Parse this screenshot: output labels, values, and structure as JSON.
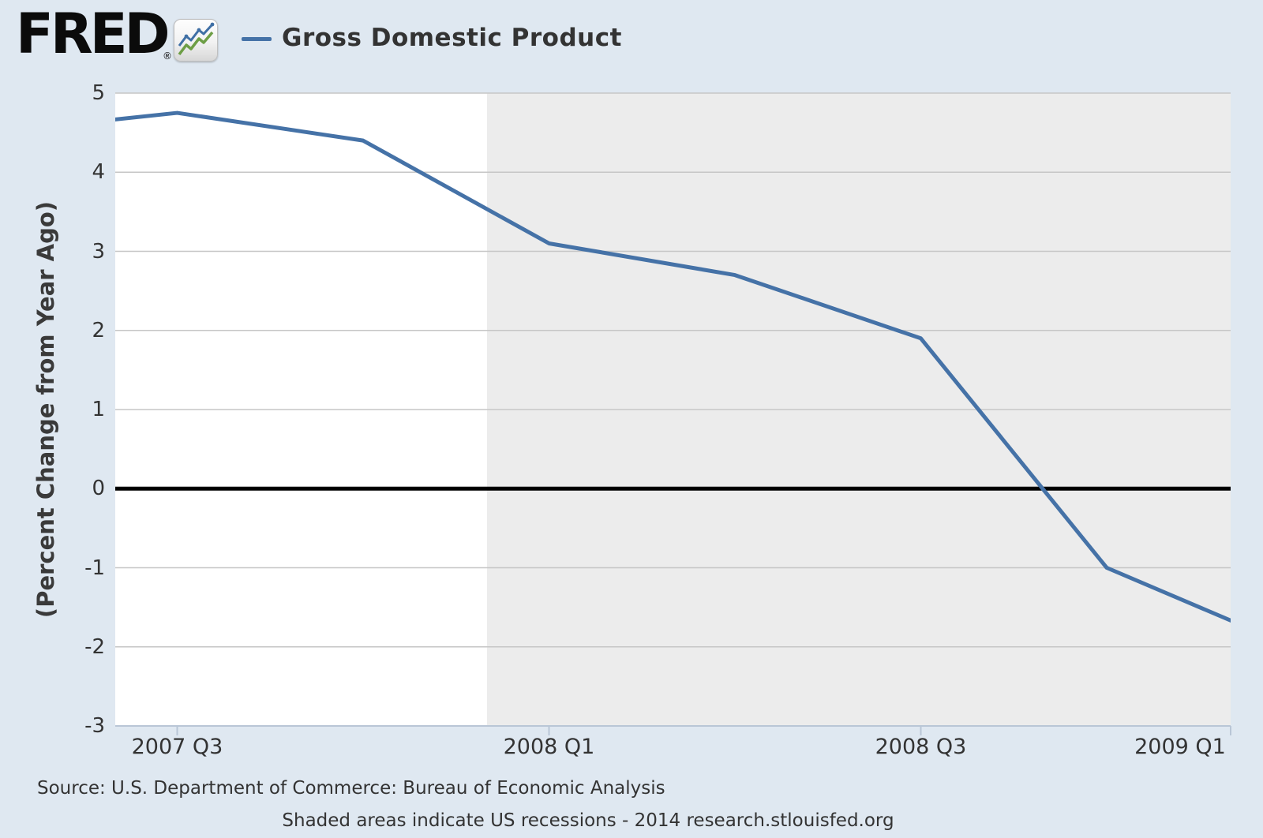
{
  "header": {
    "logo": "FRED",
    "registered": "®"
  },
  "legend": {
    "label": "Gross Domestic Product"
  },
  "footer": {
    "source": "Source: U.S. Department of Commerce: Bureau of Economic Analysis",
    "note": "Shaded areas indicate US recessions - 2014 research.stlouisfed.org"
  },
  "chart_data": {
    "type": "line",
    "title": "Gross Domestic Product",
    "ylabel": "(Percent Change from Year Ago)",
    "xlabel": "",
    "ylim": [
      -3,
      5
    ],
    "y_ticks": [
      5,
      4,
      3,
      2,
      1,
      0,
      -1,
      -2,
      -3
    ],
    "x_axis": {
      "start": "2007-06",
      "end": "2008-12"
    },
    "x_ticks": [
      "2007 Q3",
      "2008 Q1",
      "2008 Q3",
      "2009 Q1"
    ],
    "recession_shading": {
      "start": "2007-12",
      "end": "2008-12"
    },
    "grid": true,
    "zero_line": true,
    "legend_position": "top-left",
    "series": [
      {
        "name": "Gross Domestic Product",
        "color": "#4572a7",
        "points": [
          {
            "x": "2007 Q2",
            "value": 4.5
          },
          {
            "x": "2007 Q3",
            "value": 4.75
          },
          {
            "x": "2007 Q4",
            "value": 4.4
          },
          {
            "x": "2008 Q1",
            "value": 3.1
          },
          {
            "x": "2008 Q2",
            "value": 2.7
          },
          {
            "x": "2008 Q3",
            "value": 1.9
          },
          {
            "x": "2008 Q4",
            "value": -1.0
          },
          {
            "x": "2009 Q1",
            "value": -2.0
          }
        ]
      }
    ],
    "colors": {
      "background": "#dfe8f1",
      "plot_background": "#ffffff",
      "recession_band": "#ececec",
      "gridline": "#c6c6c6",
      "zero_line": "#000000",
      "axis_line": "#b9c6d6",
      "text": "#333333"
    }
  }
}
